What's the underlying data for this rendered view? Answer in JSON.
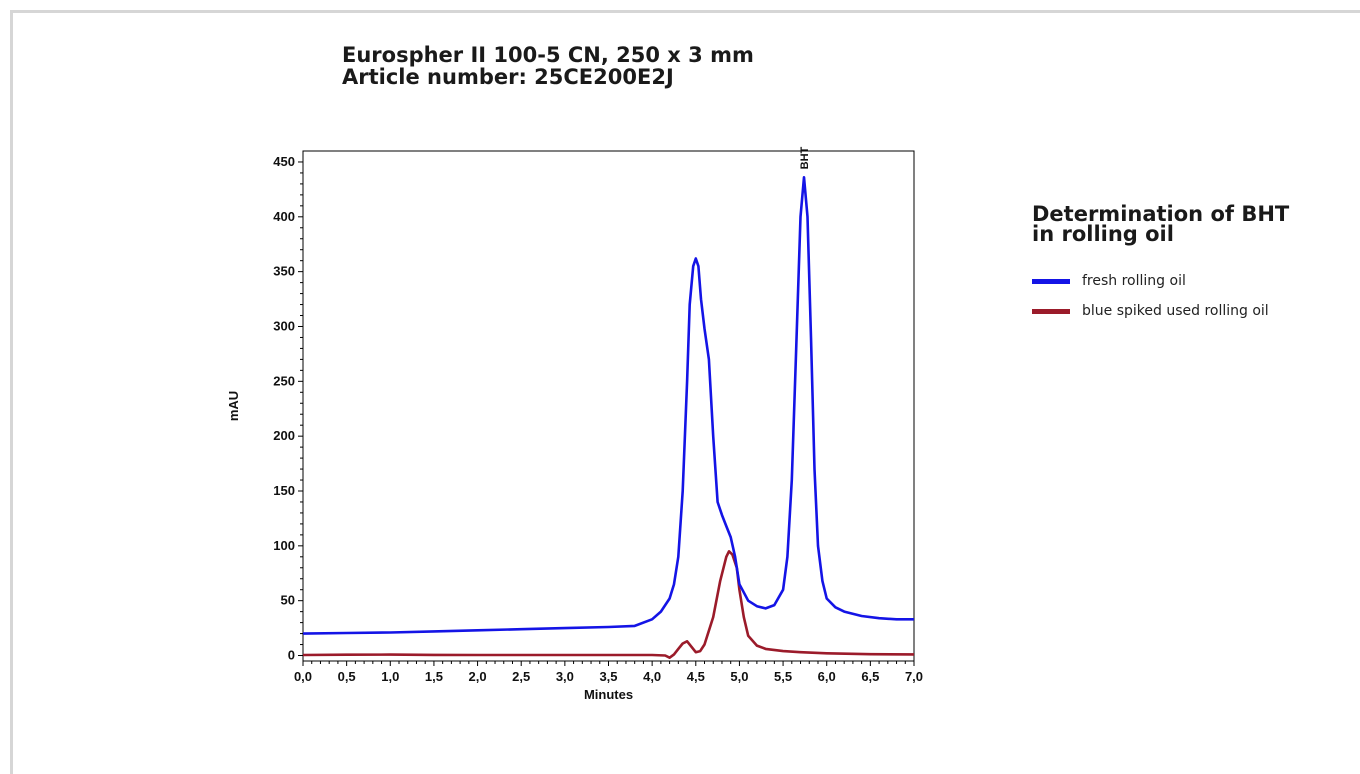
{
  "title": {
    "line1": "Eurospher II 100-5 CN, 250 x 3 mm",
    "line2": "Article number: 25CE200E2J"
  },
  "legend": {
    "title_line1": "Determination of BHT",
    "title_line2": "in rolling oil",
    "items": [
      {
        "label": "fresh rolling oil",
        "color": "#1414e6"
      },
      {
        "label": "blue spiked used rolling oil",
        "color": "#9b1b2a"
      }
    ]
  },
  "chart_data": {
    "type": "line",
    "title": "",
    "xlabel": "Minutes",
    "ylabel": "mAU",
    "xlim": [
      0,
      7
    ],
    "ylim": [
      -5,
      460
    ],
    "x_ticks": [
      0,
      0.5,
      1,
      1.5,
      2,
      2.5,
      3,
      3.5,
      4,
      4.5,
      5,
      5.5,
      6,
      6.5,
      7
    ],
    "x_tick_labels": [
      "0,0",
      "0,5",
      "1,0",
      "1,5",
      "2,0",
      "2,5",
      "3,0",
      "3,5",
      "4,0",
      "4,5",
      "5,0",
      "5,5",
      "6,0",
      "6,5",
      "7,0"
    ],
    "y_ticks": [
      0,
      50,
      100,
      150,
      200,
      250,
      300,
      350,
      400,
      450
    ],
    "y_tick_labels": [
      "0",
      "50",
      "100",
      "150",
      "200",
      "250",
      "300",
      "350",
      "400",
      "450"
    ],
    "annotations": [
      {
        "text": "BHT",
        "x": 5.74,
        "y": 436
      }
    ],
    "series": [
      {
        "name": "fresh rolling oil",
        "color": "#1414e6",
        "points": [
          [
            0,
            20
          ],
          [
            0.5,
            20.5
          ],
          [
            1,
            21
          ],
          [
            1.5,
            22
          ],
          [
            2,
            23
          ],
          [
            2.5,
            24
          ],
          [
            3,
            25
          ],
          [
            3.5,
            26
          ],
          [
            3.8,
            27
          ],
          [
            4.0,
            33
          ],
          [
            4.1,
            40
          ],
          [
            4.2,
            52
          ],
          [
            4.25,
            65
          ],
          [
            4.3,
            90
          ],
          [
            4.35,
            150
          ],
          [
            4.4,
            250
          ],
          [
            4.43,
            320
          ],
          [
            4.47,
            355
          ],
          [
            4.5,
            362
          ],
          [
            4.53,
            355
          ],
          [
            4.56,
            325
          ],
          [
            4.6,
            298
          ],
          [
            4.65,
            270
          ],
          [
            4.7,
            200
          ],
          [
            4.75,
            140
          ],
          [
            4.8,
            128
          ],
          [
            4.85,
            118
          ],
          [
            4.9,
            108
          ],
          [
            4.95,
            90
          ],
          [
            5.0,
            65
          ],
          [
            5.1,
            50
          ],
          [
            5.2,
            45
          ],
          [
            5.3,
            43
          ],
          [
            5.4,
            46
          ],
          [
            5.5,
            60
          ],
          [
            5.55,
            90
          ],
          [
            5.6,
            160
          ],
          [
            5.65,
            280
          ],
          [
            5.7,
            400
          ],
          [
            5.74,
            436
          ],
          [
            5.78,
            400
          ],
          [
            5.82,
            290
          ],
          [
            5.86,
            170
          ],
          [
            5.9,
            100
          ],
          [
            5.95,
            68
          ],
          [
            6.0,
            52
          ],
          [
            6.1,
            44
          ],
          [
            6.2,
            40
          ],
          [
            6.4,
            36
          ],
          [
            6.6,
            34
          ],
          [
            6.8,
            33
          ],
          [
            7.0,
            33
          ]
        ]
      },
      {
        "name": "blue spiked used rolling oil",
        "color": "#9b1b2a",
        "points": [
          [
            0,
            0.5
          ],
          [
            0.5,
            0.7
          ],
          [
            1,
            0.8
          ],
          [
            1.5,
            0.6
          ],
          [
            2,
            0.5
          ],
          [
            2.5,
            0.5
          ],
          [
            3,
            0.5
          ],
          [
            3.5,
            0.5
          ],
          [
            4.0,
            0.5
          ],
          [
            4.15,
            0
          ],
          [
            4.2,
            -2
          ],
          [
            4.25,
            1
          ],
          [
            4.3,
            6
          ],
          [
            4.35,
            11
          ],
          [
            4.4,
            13
          ],
          [
            4.45,
            8
          ],
          [
            4.5,
            3
          ],
          [
            4.55,
            4
          ],
          [
            4.6,
            10
          ],
          [
            4.7,
            35
          ],
          [
            4.78,
            68
          ],
          [
            4.85,
            90
          ],
          [
            4.88,
            95
          ],
          [
            4.92,
            92
          ],
          [
            4.97,
            80
          ],
          [
            5.0,
            60
          ],
          [
            5.05,
            35
          ],
          [
            5.1,
            18
          ],
          [
            5.2,
            9
          ],
          [
            5.3,
            6
          ],
          [
            5.5,
            4
          ],
          [
            5.7,
            3
          ],
          [
            6.0,
            2
          ],
          [
            6.5,
            1.2
          ],
          [
            7.0,
            1
          ]
        ]
      }
    ],
    "grid": false,
    "legend_position": "right"
  }
}
